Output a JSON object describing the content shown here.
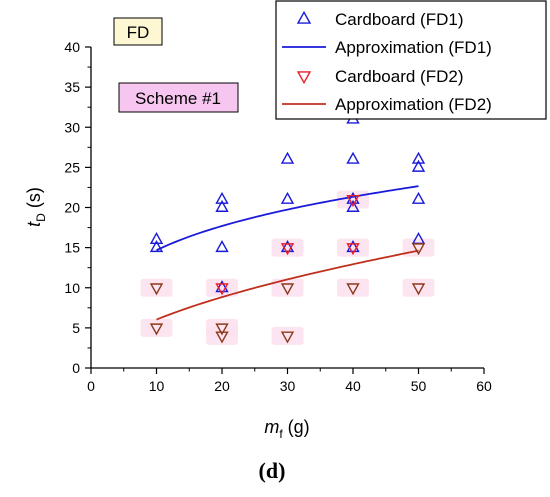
{
  "chart_data": {
    "type": "scatter",
    "panel_label": "(d)",
    "xlabel_main": "m",
    "xlabel_sub": "f",
    "xlabel_unit": " (g)",
    "ylabel_main": "t",
    "ylabel_sub": "D",
    "ylabel_unit": " (s)",
    "xlim": [
      0,
      60
    ],
    "ylim": [
      0,
      40
    ],
    "x_ticks": [
      0,
      10,
      20,
      30,
      40,
      50,
      60
    ],
    "y_ticks": [
      0,
      5,
      10,
      15,
      20,
      25,
      30,
      35,
      40
    ],
    "x_tick_labels": [
      "0",
      "10",
      "20",
      "30",
      "40",
      "50",
      "60"
    ],
    "y_tick_labels": [
      "0",
      "5",
      "10",
      "15",
      "20",
      "25",
      "30",
      "35",
      "40"
    ],
    "grid": false,
    "legend_position": "top-right",
    "annotations": [
      {
        "text": "FD",
        "background": "#fdf7d3"
      },
      {
        "text": "Scheme #1",
        "background": "#f7c6f0"
      }
    ],
    "series": [
      {
        "name": "Cardboard (FD1)",
        "kind": "scatter",
        "marker": "triangle-up",
        "color": "#1a1adb",
        "points": [
          [
            10,
            16
          ],
          [
            10,
            15
          ],
          [
            20,
            21
          ],
          [
            20,
            20
          ],
          [
            20,
            15
          ],
          [
            20,
            10
          ],
          [
            30,
            26
          ],
          [
            30,
            21
          ],
          [
            30,
            15
          ],
          [
            40,
            31
          ],
          [
            40,
            26
          ],
          [
            40,
            21
          ],
          [
            40,
            20
          ],
          [
            40,
            15
          ],
          [
            50,
            26
          ],
          [
            50,
            25
          ],
          [
            50,
            21
          ],
          [
            50,
            16
          ]
        ]
      },
      {
        "name": "Approximation (FD1)",
        "kind": "line",
        "color": "#1a1adb",
        "x_range": [
          10,
          50
        ],
        "model": {
          "form": "a*x^b",
          "a": 7.88,
          "b": 0.27
        }
      },
      {
        "name": "Cardboard (FD2)",
        "kind": "scatter",
        "marker": "triangle-down",
        "color": "#8b3a1a",
        "highlight_color": "#e8202a",
        "points": [
          [
            10,
            10
          ],
          [
            10,
            5
          ],
          [
            20,
            10
          ],
          [
            20,
            5
          ],
          [
            20,
            4
          ],
          [
            30,
            15
          ],
          [
            30,
            10
          ],
          [
            30,
            4
          ],
          [
            40,
            21
          ],
          [
            40,
            15
          ],
          [
            40,
            10
          ],
          [
            50,
            15
          ],
          [
            50,
            10
          ]
        ]
      },
      {
        "name": "Approximation (FD2)",
        "kind": "line",
        "color": "#c0301e",
        "x_range": [
          10,
          50
        ],
        "model": {
          "form": "a*x^b",
          "a": 1.7,
          "b": 0.55
        }
      }
    ],
    "point_glow_color": "#fbe1ef"
  }
}
